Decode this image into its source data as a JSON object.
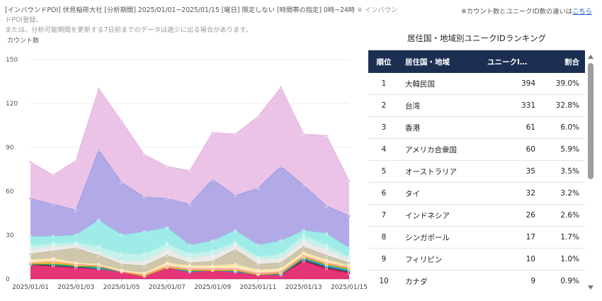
{
  "info": {
    "line1": "[インバウンドPOI] 伏見稲荷大社 [分析期間] 2025/01/01~2025/01/15 [曜日] 限定しない [時間帯の指定] 0時~24時 ",
    "line1_grey": "※ インバウンドPOI登録、",
    "line2": "または、分析可能期間を更新する7日前までのデータは逓少に出る場合があります。"
  },
  "note": {
    "text": "※カウント数とユニークID数の違いは",
    "link": "こちら"
  },
  "chart_data": {
    "type": "area",
    "stacked": true,
    "ylabel": "カウント数",
    "ylim": [
      0,
      150
    ],
    "yticks": [
      0,
      30,
      60,
      90,
      120,
      150
    ],
    "x": [
      "2025/01/01",
      "2025/01/02",
      "2025/01/03",
      "2025/01/04",
      "2025/01/05",
      "2025/01/06",
      "2025/01/07",
      "2025/01/08",
      "2025/01/09",
      "2025/01/10",
      "2025/01/11",
      "2025/01/12",
      "2025/01/13",
      "2025/01/14",
      "2025/01/15"
    ],
    "xtick_labels": [
      "2025/01/01",
      "2025/01/03",
      "2025/01/05",
      "2025/01/07",
      "2025/01/09",
      "2025/01/11",
      "2025/01/13",
      "2025/01/15"
    ],
    "grid": true,
    "series": [
      {
        "color": "#e0115f",
        "values": [
          10,
          9,
          8,
          7,
          5,
          2,
          8,
          5,
          6,
          5,
          3,
          3,
          12,
          7,
          4
        ]
      },
      {
        "color": "#3a3a3a",
        "values": [
          0,
          0,
          0,
          0,
          0,
          0,
          0,
          0,
          0,
          0,
          0,
          0,
          1,
          1,
          1
        ]
      },
      {
        "color": "#2b9bd6",
        "values": [
          0,
          1,
          1,
          0,
          0,
          0,
          0,
          0,
          0,
          0,
          0,
          0,
          1,
          1,
          1
        ]
      },
      {
        "color": "#2ea043",
        "values": [
          0,
          0,
          0,
          1,
          0,
          0,
          0,
          1,
          0,
          1,
          0,
          1,
          1,
          1,
          1
        ]
      },
      {
        "color": "#f4b400",
        "values": [
          1,
          2,
          0,
          1,
          0,
          0,
          0,
          0,
          0,
          0,
          0,
          0,
          0,
          0,
          0
        ]
      },
      {
        "color": "#ff9e9e",
        "values": [
          0,
          0,
          1,
          0,
          0,
          1,
          1,
          1,
          1,
          1,
          1,
          1,
          1,
          1,
          1
        ]
      },
      {
        "color": "#fce6a8",
        "values": [
          2,
          2,
          1,
          1,
          1,
          1,
          2,
          2,
          2,
          3,
          2,
          2,
          2,
          2,
          1
        ]
      },
      {
        "color": "#c5bd9e",
        "values": [
          4,
          5,
          10,
          6,
          4,
          5,
          5,
          2,
          3,
          10,
          4,
          4,
          4,
          3,
          2
        ]
      },
      {
        "color": "#e6e6e6",
        "values": [
          3,
          3,
          2,
          2,
          2,
          3,
          4,
          3,
          4,
          3,
          3,
          3,
          4,
          4,
          2
        ]
      },
      {
        "color": "#b8f0e6",
        "values": [
          3,
          2,
          2,
          4,
          5,
          5,
          4,
          3,
          3,
          2,
          2,
          3,
          4,
          3,
          2
        ]
      },
      {
        "color": "#8ee8e4",
        "values": [
          6,
          5,
          5,
          18,
          13,
          15,
          11,
          6,
          7,
          8,
          8,
          9,
          3,
          8,
          6
        ]
      },
      {
        "color": "#a59be3",
        "values": [
          26,
          22,
          17,
          48,
          36,
          24,
          20,
          28,
          42,
          24,
          39,
          51,
          31,
          19,
          22
        ]
      },
      {
        "color": "#e8b8e2",
        "values": [
          25,
          20,
          34,
          42,
          42,
          29,
          22,
          23,
          32,
          42,
          49,
          54,
          35,
          48,
          24
        ]
      }
    ]
  },
  "ranking": {
    "title": "居住国・地域別ユニークIDランキング",
    "headers": {
      "rank": "順位",
      "name": "居住国・地域",
      "uid": "ユニークI…",
      "pct": "割合"
    },
    "rows": [
      {
        "rank": "1",
        "name": "大韓民国",
        "uid": "394",
        "pct": "39.0%"
      },
      {
        "rank": "2",
        "name": "台湾",
        "uid": "331",
        "pct": "32.8%"
      },
      {
        "rank": "3",
        "name": "香港",
        "uid": "61",
        "pct": "6.0%"
      },
      {
        "rank": "4",
        "name": "アメリカ合衆国",
        "uid": "60",
        "pct": "5.9%"
      },
      {
        "rank": "5",
        "name": "オーストラリア",
        "uid": "35",
        "pct": "3.5%"
      },
      {
        "rank": "6",
        "name": "タイ",
        "uid": "32",
        "pct": "3.2%"
      },
      {
        "rank": "7",
        "name": "インドネシア",
        "uid": "26",
        "pct": "2.6%"
      },
      {
        "rank": "8",
        "name": "シンガポール",
        "uid": "17",
        "pct": "1.7%"
      },
      {
        "rank": "9",
        "name": "フィリピン",
        "uid": "10",
        "pct": "1.0%"
      },
      {
        "rank": "10",
        "name": "カナダ",
        "uid": "9",
        "pct": "0.9%"
      }
    ]
  }
}
